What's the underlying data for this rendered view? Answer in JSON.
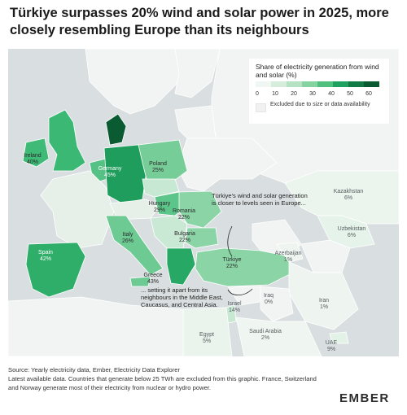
{
  "title": "Türkiye surpasses 20% wind and solar power in 2025, more closely resembling Europe than its neighbours",
  "legend": {
    "title": "Share of electricity generation from wind and solar (%)",
    "ticks": [
      "0",
      "10",
      "20",
      "30",
      "40",
      "50",
      "60"
    ],
    "colors": [
      "#f0f7f2",
      "#d6eddc",
      "#b5e2c3",
      "#86d3a2",
      "#4fc07e",
      "#1fa25f",
      "#117a45",
      "#0a5a32"
    ],
    "excluded_label": "Excluded due to size or data availability",
    "excluded_color": "#f1f1f1"
  },
  "countries": [
    {
      "name": "Ireland",
      "value": "40%"
    },
    {
      "name": "Germany",
      "value": "45%"
    },
    {
      "name": "Poland",
      "value": "25%"
    },
    {
      "name": "Hungary",
      "value": "29%"
    },
    {
      "name": "Romania",
      "value": "22%"
    },
    {
      "name": "Italy",
      "value": "26%"
    },
    {
      "name": "Bulgaria",
      "value": "22%"
    },
    {
      "name": "Spain",
      "value": "42%"
    },
    {
      "name": "Greece",
      "value": "43%"
    },
    {
      "name": "Türkiye",
      "value": "22%"
    },
    {
      "name": "Kazakhstan",
      "value": "6%"
    },
    {
      "name": "Uzbekistan",
      "value": "6%"
    },
    {
      "name": "Azerbaijan",
      "value": "1%"
    },
    {
      "name": "Iraq",
      "value": "0%"
    },
    {
      "name": "Iran",
      "value": "1%"
    },
    {
      "name": "Israel",
      "value": "14%"
    },
    {
      "name": "Saudi Arabia",
      "value": "2%"
    },
    {
      "name": "UAE",
      "value": "9%"
    },
    {
      "name": "Egypt",
      "value": "5%"
    }
  ],
  "annotations": {
    "europe": "Türkiye's wind and solar generation is closer to levels seen in Europe...",
    "neighbours": "... setting it apart from its neighbours in the Middle East, Caucasus, and Central Asia."
  },
  "footer": {
    "source": "Source: Yearly electricity data, Ember, Electricity Data Explorer",
    "note": "Latest available data. Countries that generate below 25 TWh are excluded from this graphic. France, Switzerland and Norway generate most of their electricity from nuclear or hydro power."
  },
  "logo": {
    "text": "EMBER",
    "accent_color": "#14a564"
  }
}
